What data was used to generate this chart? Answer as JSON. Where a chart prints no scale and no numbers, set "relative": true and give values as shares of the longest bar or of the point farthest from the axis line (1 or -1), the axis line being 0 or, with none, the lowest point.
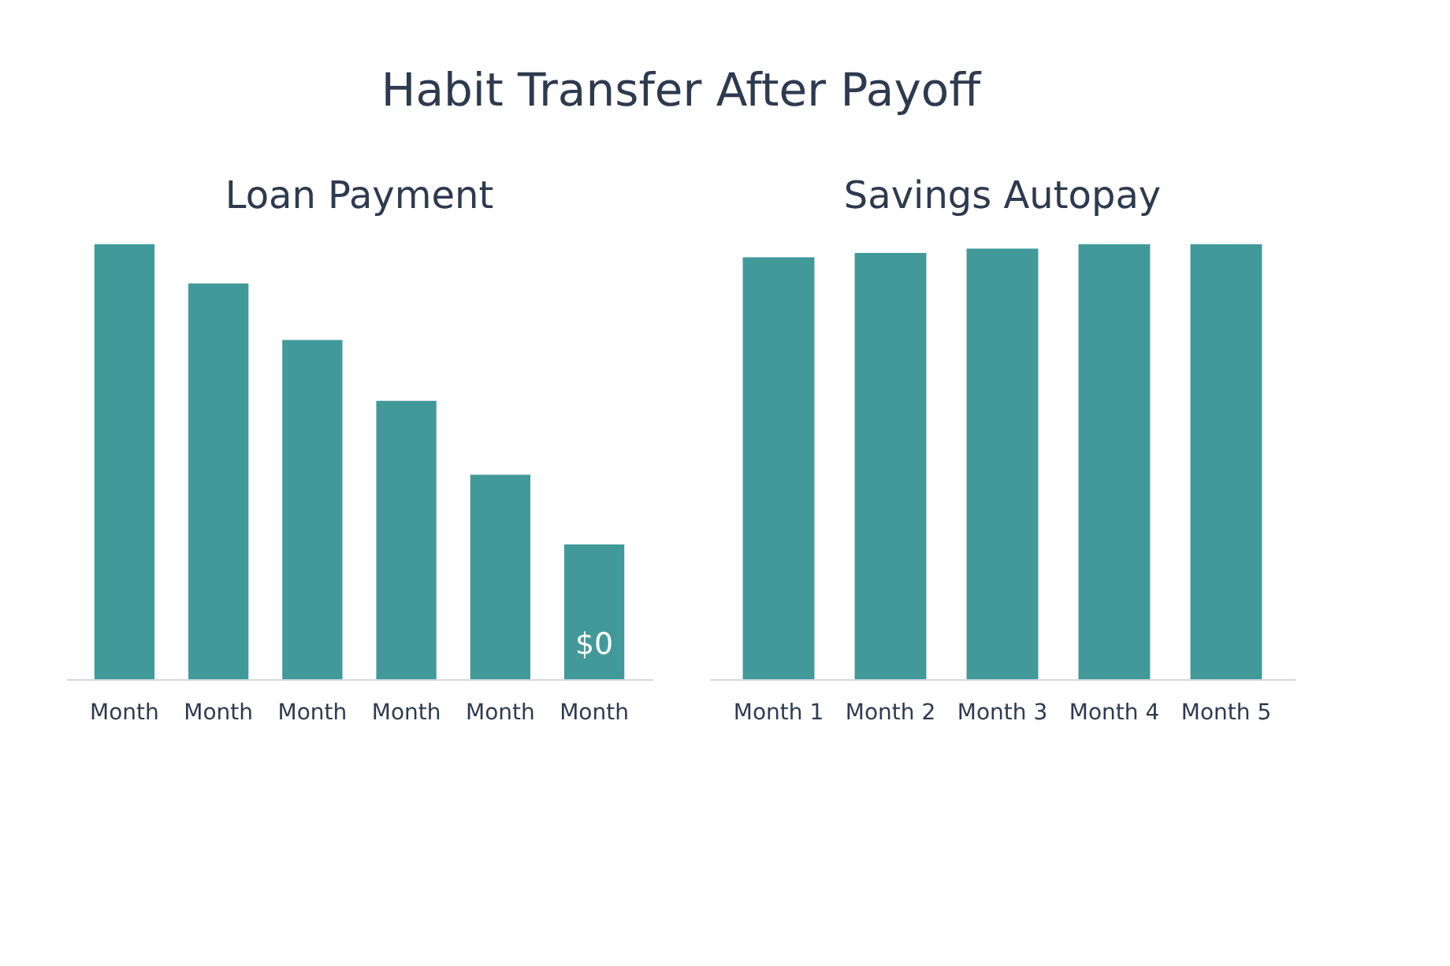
{
  "chart_data": [
    {
      "type": "bar",
      "title": "Loan Payment",
      "annotations": [
        "Habit Transfer After Payoff",
        "$0"
      ],
      "relative": true,
      "categories": [
        "Month",
        "Month",
        "Month",
        "Month",
        "Month",
        "Month"
      ],
      "values": [
        1,
        0.91,
        0.78,
        0.64,
        0.47,
        0.31
      ],
      "color": "#41999a"
    },
    {
      "type": "bar",
      "title": "Savings Autopay",
      "relative": true,
      "categories": [
        "Month 1",
        "Month 2",
        "Month 3",
        "Month 4",
        "Month 5"
      ],
      "values": [
        0.97,
        0.98,
        0.99,
        1,
        1
      ],
      "color": "#41999a"
    }
  ]
}
